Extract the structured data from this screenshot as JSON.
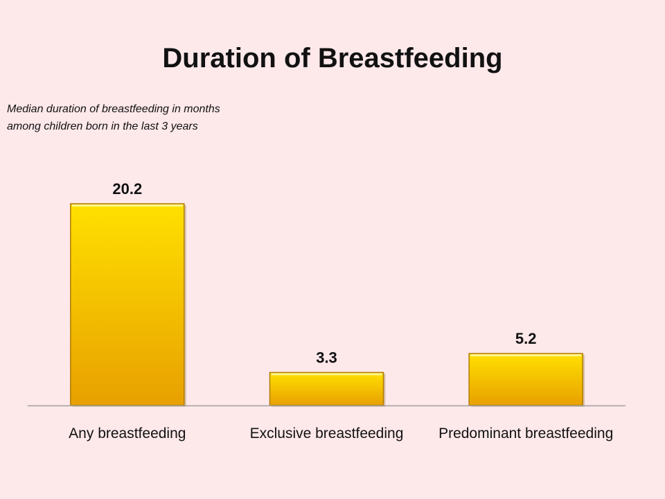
{
  "slide": {
    "background": "#fde8ea"
  },
  "chart_data": {
    "type": "bar",
    "title": "Duration of Breastfeeding",
    "subtitle_lines": [
      "Median duration of breastfeeding in months",
      "among children born in the last 3 years"
    ],
    "categories": [
      "Any breastfeeding",
      "Exclusive breastfeeding",
      "Predominant breastfeeding"
    ],
    "values": [
      20.2,
      3.3,
      5.2
    ],
    "value_labels": [
      "20.2",
      "3.3",
      "5.2"
    ],
    "xlabel": "",
    "ylabel": "",
    "ylim": [
      0,
      20.2
    ],
    "grid": false,
    "legend": "none",
    "bar_color_top": "#ffe000",
    "bar_color_bottom": "#e8a000",
    "bar_edge_color": "#b07a00",
    "axis_color": "#a0a0a0"
  }
}
